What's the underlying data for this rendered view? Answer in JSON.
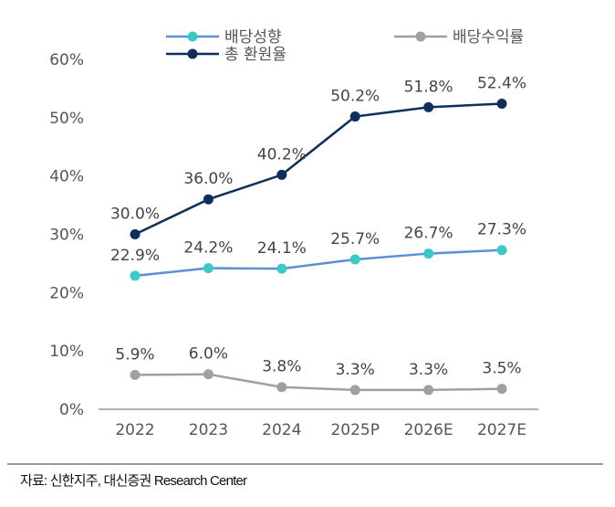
{
  "chart_data": {
    "type": "line",
    "categories": [
      "2022",
      "2023",
      "2024",
      "2025P",
      "2026E",
      "2027E"
    ],
    "ylim": [
      0,
      60
    ],
    "yticks": [
      0,
      10,
      20,
      30,
      40,
      50,
      60
    ],
    "ytick_labels": [
      "0%",
      "10%",
      "20%",
      "30%",
      "40%",
      "50%",
      "60%"
    ],
    "grid": false,
    "legend_placement": "top",
    "series": [
      {
        "name": "배당성향",
        "values": [
          22.9,
          24.2,
          24.1,
          25.7,
          26.7,
          27.3
        ],
        "labels": [
          "22.9%",
          "24.2%",
          "24.1%",
          "25.7%",
          "26.7%",
          "27.3%"
        ],
        "line_color": "#5b8fd6",
        "marker_color": "#3cc8c8"
      },
      {
        "name": "배당수익률",
        "values": [
          5.9,
          6.0,
          3.8,
          3.3,
          3.3,
          3.5
        ],
        "labels": [
          "5.9%",
          "6.0%",
          "3.8%",
          "3.3%",
          "3.3%",
          "3.5%"
        ],
        "line_color": "#a0a0a0",
        "marker_color": "#a0a0a0"
      },
      {
        "name": "총 환원율",
        "values": [
          30.0,
          36.0,
          40.2,
          50.2,
          51.8,
          52.4
        ],
        "labels": [
          "30.0%",
          "36.0%",
          "40.2%",
          "50.2%",
          "51.8%",
          "52.4%"
        ],
        "line_color": "#0d2f5a",
        "marker_color": "#0d2f5a"
      }
    ]
  },
  "source": "자료: 신한지주, 대신증권 Research Center"
}
